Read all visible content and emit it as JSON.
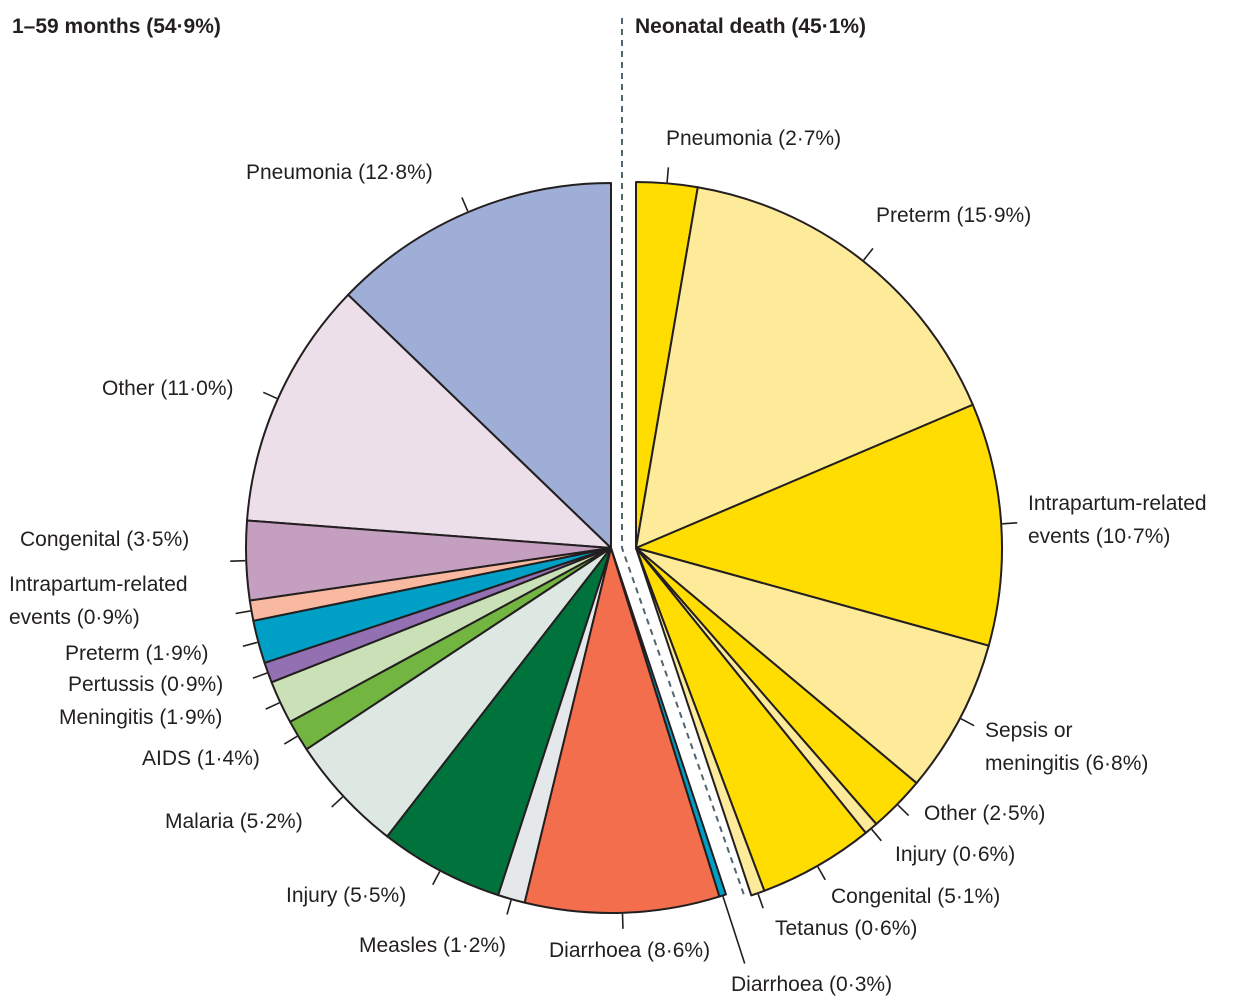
{
  "chart_data": {
    "type": "pie",
    "groups": [
      {
        "title": "1–59 months (54·9%)",
        "value": 54.9,
        "slices": [
          {
            "label": "Pneumonia (12·8%)",
            "value": 12.8,
            "color": "#9FAED6"
          },
          {
            "label": "Other (11·0%)",
            "value": 11.0,
            "color": "#EDDFEA"
          },
          {
            "label": "Congenital (3·5%)",
            "value": 3.5,
            "color": "#C59FC0"
          },
          {
            "label": "Intrapartum-related\nevents (0·9%)",
            "value": 0.9,
            "color": "#F9B9A0"
          },
          {
            "label": "Preterm (1·9%)",
            "value": 1.9,
            "color": "#00A0C6"
          },
          {
            "label": "Pertussis (0·9%)",
            "value": 0.9,
            "color": "#9270B2"
          },
          {
            "label": "Meningitis (1·9%)",
            "value": 1.9,
            "color": "#CAE1B8"
          },
          {
            "label": "AIDS (1·4%)",
            "value": 1.4,
            "color": "#72B541"
          },
          {
            "label": "Malaria (5·2%)",
            "value": 5.2,
            "color": "#DCE8E1"
          },
          {
            "label": "Injury (5·5%)",
            "value": 5.5,
            "color": "#00733D"
          },
          {
            "label": "Measles (1·2%)",
            "value": 1.2,
            "color": "#E5E8EA"
          },
          {
            "label": "Diarrhoea (8·6%)",
            "value": 8.6,
            "color": "#F26E4C"
          }
        ]
      },
      {
        "title": "Neonatal death (45·1%)",
        "value": 45.1,
        "slices": [
          {
            "label": "Pneumonia (2·7%)",
            "value": 2.7,
            "color": "#FFDD00"
          },
          {
            "label": "Preterm (15·9%)",
            "value": 15.9,
            "color": "#FDEB9A"
          },
          {
            "label": "Intrapartum-related\nevents (10·7%)",
            "value": 10.7,
            "color": "#FFDD00"
          },
          {
            "label": "Sepsis or\nmeningitis (6·8%)",
            "value": 6.8,
            "color": "#FDEB9A"
          },
          {
            "label": "Other (2·5%)",
            "value": 2.5,
            "color": "#FFDD00"
          },
          {
            "label": "Injury (0·6%)",
            "value": 0.6,
            "color": "#FDEB9A"
          },
          {
            "label": "Congenital (5·1%)",
            "value": 5.1,
            "color": "#FFDD00"
          },
          {
            "label": "Tetanus (0·6%)",
            "value": 0.6,
            "color": "#FDEB9A"
          },
          {
            "label": "Diarrhoea (0·3%)",
            "value": 0.3,
            "color": "#00A0C6"
          }
        ]
      }
    ],
    "divider": "dashed",
    "legend": "none"
  }
}
